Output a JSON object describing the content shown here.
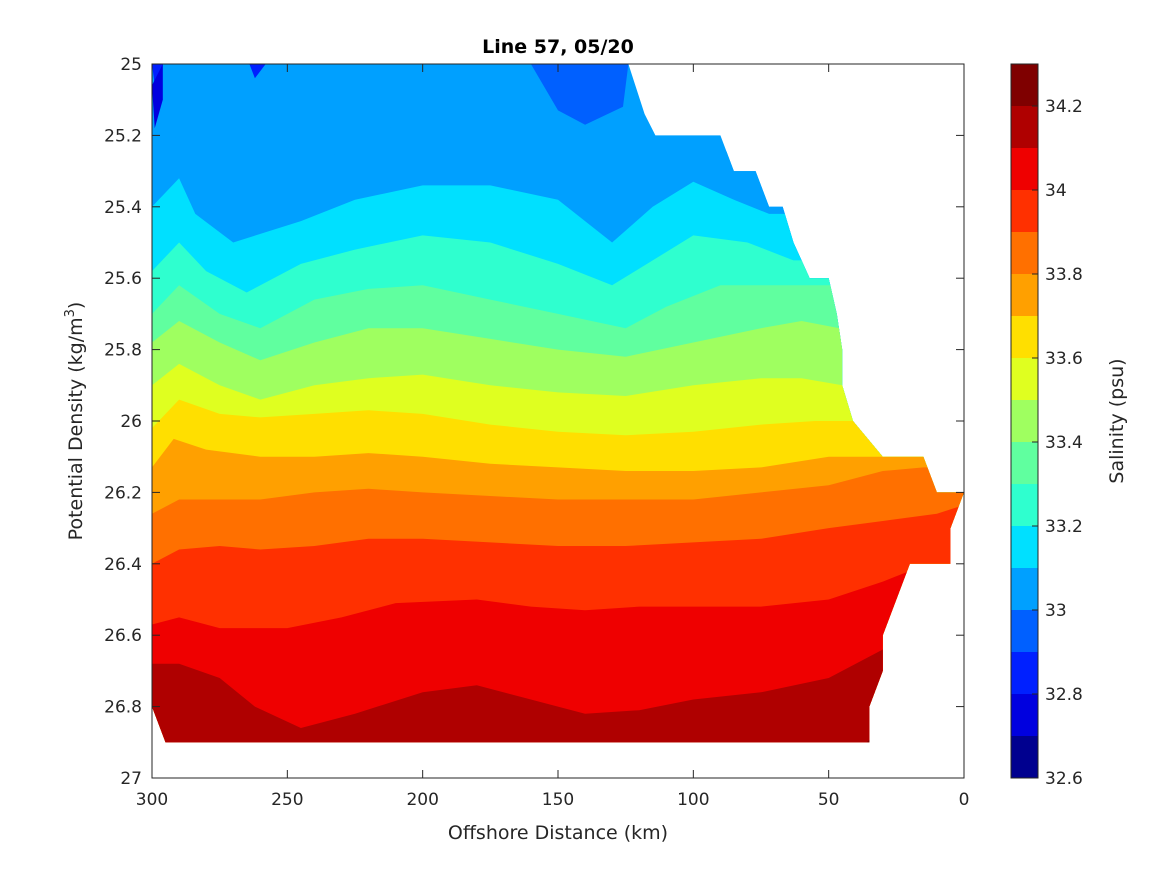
{
  "chart_data": {
    "type": "heatmap",
    "subtype": "filled-contour",
    "title": "Line 57, 05/20",
    "xlabel": "Offshore Distance (km)",
    "ylabel_parts": [
      "Potential Density (kg/m",
      "3",
      ")"
    ],
    "colorbar_label": "Salinity (psu)",
    "xlim": [
      300,
      0
    ],
    "ylim": [
      27,
      25
    ],
    "x_reversed": true,
    "y_reversed": true,
    "xticks": [
      300,
      250,
      200,
      150,
      100,
      50,
      0
    ],
    "xtick_labels": [
      "300",
      "250",
      "200",
      "150",
      "100",
      "50",
      "0"
    ],
    "yticks": [
      25,
      25.2,
      25.4,
      25.6,
      25.8,
      26,
      26.2,
      26.4,
      26.6,
      26.8,
      27
    ],
    "ytick_labels": [
      "25",
      "25.2",
      "25.4",
      "25.6",
      "25.8",
      "26",
      "26.2",
      "26.4",
      "26.6",
      "26.8",
      "27"
    ],
    "colorbar": {
      "range": [
        32.6,
        34.3
      ],
      "levels": [
        32.6,
        32.7,
        32.8,
        32.9,
        33.0,
        33.1,
        33.2,
        33.3,
        33.4,
        33.5,
        33.6,
        33.7,
        33.8,
        33.9,
        34.0,
        34.1,
        34.2,
        34.3
      ],
      "colors": [
        "#00008f",
        "#0000df",
        "#0020ff",
        "#0060ff",
        "#00a0ff",
        "#00e0ff",
        "#2fffcf",
        "#60ff9f",
        "#9fff60",
        "#dfff20",
        "#ffdf00",
        "#ffa000",
        "#ff7000",
        "#ff3000",
        "#ef0000",
        "#af0000",
        "#7f0000"
      ],
      "ticks": [
        32.6,
        32.8,
        33,
        33.2,
        33.4,
        33.6,
        33.8,
        34,
        34.2
      ],
      "tick_labels": [
        "32.6",
        "32.8",
        "33",
        "33.2",
        "33.4",
        "33.6",
        "33.8",
        "34",
        "34.2"
      ]
    },
    "data_extent": [
      [
        300,
        25
      ],
      [
        240,
        25
      ],
      [
        175,
        25
      ],
      [
        124,
        25
      ],
      [
        118,
        25.14
      ],
      [
        114,
        25.2
      ],
      [
        90,
        25.2
      ],
      [
        85,
        25.3
      ],
      [
        77,
        25.3
      ],
      [
        72,
        25.4
      ],
      [
        67,
        25.4
      ],
      [
        63,
        25.5
      ],
      [
        57,
        25.6
      ],
      [
        50,
        25.6
      ],
      [
        47,
        25.7
      ],
      [
        45,
        25.8
      ],
      [
        45,
        25.9
      ],
      [
        41,
        26
      ],
      [
        30,
        26.1
      ],
      [
        15,
        26.1
      ],
      [
        10,
        26.2
      ],
      [
        0,
        26.2
      ],
      [
        5,
        26.3
      ],
      [
        5,
        26.4
      ],
      [
        20,
        26.4
      ],
      [
        30,
        26.6
      ],
      [
        30,
        26.7
      ],
      [
        35,
        26.8
      ],
      [
        35,
        26.9
      ],
      [
        295,
        26.9
      ],
      [
        300,
        26.8
      ]
    ],
    "isolines": [
      {
        "level": 33.0,
        "points": [
          [
            300,
            25.24
          ],
          [
            290,
            25.2
          ],
          [
            285,
            25.32
          ],
          [
            275,
            25.39
          ],
          [
            250,
            25.33
          ],
          [
            225,
            25.22
          ],
          [
            200,
            25.14
          ],
          [
            175,
            25.1
          ],
          [
            150,
            25.2
          ],
          [
            135,
            25.32
          ],
          [
            125,
            25.25
          ],
          [
            115,
            25.2
          ],
          [
            100,
            25.22
          ],
          [
            80,
            25.26
          ]
        ]
      },
      {
        "level": 33.1,
        "points": [
          [
            300,
            25.4
          ],
          [
            290,
            25.32
          ],
          [
            284,
            25.42
          ],
          [
            270,
            25.5
          ],
          [
            245,
            25.44
          ],
          [
            225,
            25.38
          ],
          [
            200,
            25.34
          ],
          [
            175,
            25.34
          ],
          [
            150,
            25.38
          ],
          [
            130,
            25.5
          ],
          [
            115,
            25.4
          ],
          [
            100,
            25.33
          ],
          [
            85,
            25.38
          ],
          [
            72,
            25.42
          ]
        ]
      },
      {
        "level": 33.2,
        "points": [
          [
            300,
            25.58
          ],
          [
            290,
            25.5
          ],
          [
            280,
            25.58
          ],
          [
            265,
            25.64
          ],
          [
            245,
            25.56
          ],
          [
            225,
            25.52
          ],
          [
            200,
            25.48
          ],
          [
            175,
            25.5
          ],
          [
            150,
            25.56
          ],
          [
            130,
            25.62
          ],
          [
            115,
            25.55
          ],
          [
            100,
            25.48
          ],
          [
            80,
            25.5
          ],
          [
            63,
            25.55
          ]
        ]
      },
      {
        "level": 33.3,
        "points": [
          [
            300,
            25.7
          ],
          [
            290,
            25.62
          ],
          [
            275,
            25.7
          ],
          [
            260,
            25.74
          ],
          [
            240,
            25.66
          ],
          [
            220,
            25.63
          ],
          [
            200,
            25.62
          ],
          [
            175,
            25.66
          ],
          [
            150,
            25.7
          ],
          [
            125,
            25.74
          ],
          [
            110,
            25.68
          ],
          [
            90,
            25.62
          ],
          [
            70,
            25.62
          ],
          [
            55,
            25.62
          ]
        ]
      },
      {
        "level": 33.4,
        "points": [
          [
            300,
            25.78
          ],
          [
            290,
            25.72
          ],
          [
            275,
            25.78
          ],
          [
            260,
            25.83
          ],
          [
            240,
            25.78
          ],
          [
            220,
            25.74
          ],
          [
            200,
            25.74
          ],
          [
            175,
            25.77
          ],
          [
            150,
            25.8
          ],
          [
            125,
            25.82
          ],
          [
            100,
            25.78
          ],
          [
            75,
            25.74
          ],
          [
            60,
            25.72
          ],
          [
            46,
            25.74
          ]
        ]
      },
      {
        "level": 33.5,
        "points": [
          [
            300,
            25.9
          ],
          [
            290,
            25.84
          ],
          [
            275,
            25.9
          ],
          [
            260,
            25.94
          ],
          [
            240,
            25.9
          ],
          [
            220,
            25.88
          ],
          [
            200,
            25.87
          ],
          [
            175,
            25.9
          ],
          [
            150,
            25.92
          ],
          [
            125,
            25.93
          ],
          [
            100,
            25.9
          ],
          [
            75,
            25.88
          ],
          [
            60,
            25.88
          ],
          [
            45,
            25.9
          ]
        ]
      },
      {
        "level": 33.6,
        "points": [
          [
            300,
            26.02
          ],
          [
            290,
            25.94
          ],
          [
            275,
            25.98
          ],
          [
            260,
            25.99
          ],
          [
            240,
            25.98
          ],
          [
            220,
            25.97
          ],
          [
            200,
            25.98
          ],
          [
            175,
            26.01
          ],
          [
            150,
            26.03
          ],
          [
            125,
            26.04
          ],
          [
            100,
            26.03
          ],
          [
            75,
            26.01
          ],
          [
            55,
            26.0
          ],
          [
            42,
            26.0
          ]
        ]
      },
      {
        "level": 33.7,
        "points": [
          [
            300,
            26.13
          ],
          [
            292,
            26.05
          ],
          [
            280,
            26.08
          ],
          [
            260,
            26.1
          ],
          [
            240,
            26.1
          ],
          [
            220,
            26.09
          ],
          [
            200,
            26.1
          ],
          [
            175,
            26.12
          ],
          [
            150,
            26.13
          ],
          [
            125,
            26.14
          ],
          [
            100,
            26.14
          ],
          [
            75,
            26.13
          ],
          [
            50,
            26.1
          ],
          [
            35,
            26.1
          ]
        ]
      },
      {
        "level": 33.8,
        "points": [
          [
            300,
            26.26
          ],
          [
            290,
            26.22
          ],
          [
            275,
            26.22
          ],
          [
            260,
            26.22
          ],
          [
            240,
            26.2
          ],
          [
            220,
            26.19
          ],
          [
            200,
            26.2
          ],
          [
            175,
            26.21
          ],
          [
            150,
            26.22
          ],
          [
            125,
            26.22
          ],
          [
            100,
            26.22
          ],
          [
            75,
            26.2
          ],
          [
            50,
            26.18
          ],
          [
            30,
            26.14
          ],
          [
            15,
            26.13
          ]
        ]
      },
      {
        "level": 33.9,
        "points": [
          [
            300,
            26.4
          ],
          [
            290,
            26.36
          ],
          [
            275,
            26.35
          ],
          [
            260,
            26.36
          ],
          [
            240,
            26.35
          ],
          [
            220,
            26.33
          ],
          [
            200,
            26.33
          ],
          [
            175,
            26.34
          ],
          [
            150,
            26.35
          ],
          [
            125,
            26.35
          ],
          [
            100,
            26.34
          ],
          [
            75,
            26.33
          ],
          [
            50,
            26.3
          ],
          [
            30,
            26.28
          ],
          [
            10,
            26.26
          ],
          [
            2,
            26.24
          ]
        ]
      },
      {
        "level": 34.0,
        "points": [
          [
            300,
            26.57
          ],
          [
            290,
            26.55
          ],
          [
            275,
            26.58
          ],
          [
            250,
            26.58
          ],
          [
            230,
            26.55
          ],
          [
            210,
            26.51
          ],
          [
            180,
            26.5
          ],
          [
            160,
            26.52
          ],
          [
            140,
            26.53
          ],
          [
            120,
            26.52
          ],
          [
            100,
            26.52
          ],
          [
            75,
            26.52
          ],
          [
            50,
            26.5
          ],
          [
            30,
            26.45
          ],
          [
            20,
            26.42
          ]
        ]
      },
      {
        "level": 34.1,
        "points": [
          [
            300,
            26.68
          ],
          [
            290,
            26.68
          ],
          [
            275,
            26.72
          ],
          [
            262,
            26.8
          ],
          [
            245,
            26.86
          ],
          [
            225,
            26.82
          ],
          [
            200,
            26.76
          ],
          [
            180,
            26.74
          ],
          [
            160,
            26.78
          ],
          [
            140,
            26.82
          ],
          [
            120,
            26.81
          ],
          [
            100,
            26.78
          ],
          [
            75,
            26.76
          ],
          [
            50,
            26.72
          ],
          [
            35,
            26.66
          ],
          [
            30,
            26.64
          ]
        ]
      },
      {
        "level": 34.2,
        "points": [
          [
            36,
            26.9
          ],
          [
            33,
            26.88
          ]
        ]
      }
    ],
    "lowest_patch": {
      "level": 32.8,
      "points": [
        [
          300,
          25
        ],
        [
          298,
          25.12
        ],
        [
          296,
          25
        ],
        [
          264,
          25
        ],
        [
          262,
          25.04
        ],
        [
          258,
          25
        ]
      ]
    },
    "bottom_core": {
      "level": 32.9,
      "points": [
        [
          200,
          25
        ],
        [
          160,
          25
        ],
        [
          150,
          25.13
        ],
        [
          140,
          25.17
        ],
        [
          126,
          25.12
        ],
        [
          124,
          25
        ]
      ]
    },
    "deep_core": {
      "level": 32.7,
      "points": [
        [
          300,
          25.06
        ],
        [
          299,
          25.18
        ],
        [
          296,
          25.1
        ],
        [
          296,
          25
        ]
      ]
    }
  }
}
